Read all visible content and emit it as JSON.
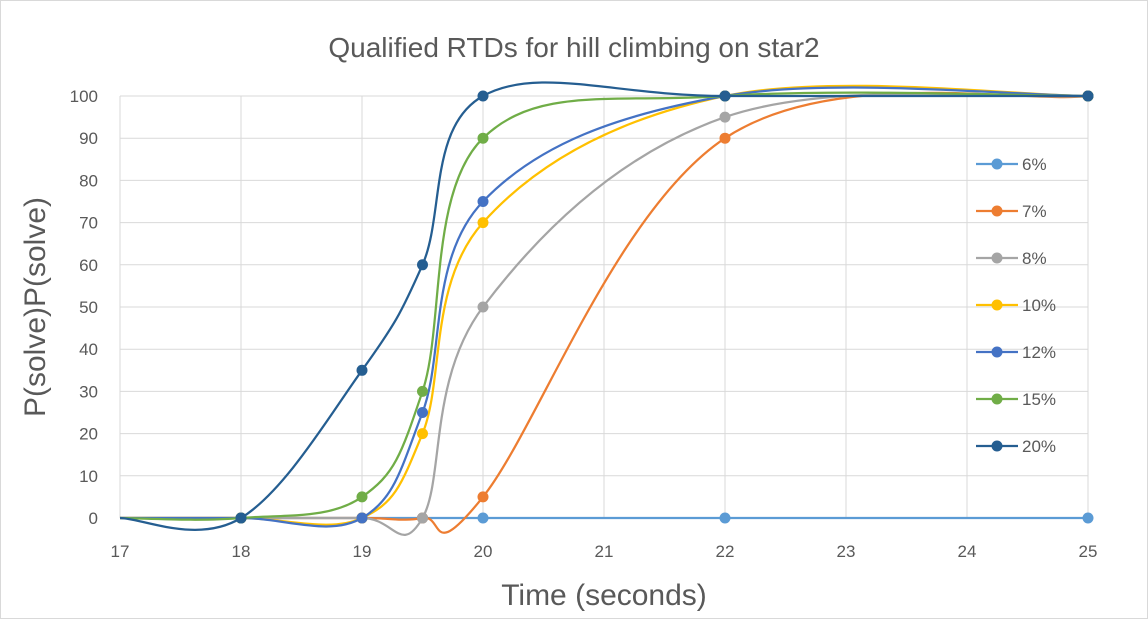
{
  "chart_data": {
    "type": "line",
    "title": "Qualified RTDs for hill climbing on star2",
    "xlabel": "Time (seconds)",
    "ylabel": "P(solve)P(solve)",
    "xlim": [
      17,
      25
    ],
    "ylim": [
      0,
      100
    ],
    "xticks": [
      17,
      18,
      19,
      20,
      21,
      22,
      23,
      24,
      25
    ],
    "yticks": [
      0,
      10,
      20,
      30,
      40,
      50,
      60,
      70,
      80,
      90,
      100
    ],
    "grid": true,
    "smooth": true,
    "legend_position": "right",
    "series": [
      {
        "name": "6%",
        "color": "#5B9BD5",
        "points": [
          [
            17,
            0
          ],
          [
            18,
            0
          ],
          [
            19,
            0
          ],
          [
            19.5,
            0
          ],
          [
            20,
            0
          ],
          [
            22,
            0
          ],
          [
            25,
            0
          ]
        ]
      },
      {
        "name": "7%",
        "color": "#ED7D31",
        "points": [
          [
            17,
            0
          ],
          [
            18,
            0
          ],
          [
            19,
            0
          ],
          [
            19.5,
            0
          ],
          [
            20,
            5
          ],
          [
            22,
            90
          ],
          [
            25,
            100
          ]
        ]
      },
      {
        "name": "8%",
        "color": "#A5A5A5",
        "points": [
          [
            17,
            0
          ],
          [
            18,
            0
          ],
          [
            19,
            0
          ],
          [
            19.5,
            0
          ],
          [
            20,
            50
          ],
          [
            22,
            95
          ],
          [
            25,
            100
          ]
        ]
      },
      {
        "name": "10%",
        "color": "#FFC000",
        "points": [
          [
            17,
            0
          ],
          [
            18,
            0
          ],
          [
            19,
            0
          ],
          [
            19.5,
            20
          ],
          [
            20,
            70
          ],
          [
            22,
            100
          ],
          [
            25,
            100
          ]
        ]
      },
      {
        "name": "12%",
        "color": "#4472C4",
        "points": [
          [
            17,
            0
          ],
          [
            18,
            0
          ],
          [
            19,
            0
          ],
          [
            19.5,
            25
          ],
          [
            20,
            75
          ],
          [
            22,
            100
          ],
          [
            25,
            100
          ]
        ]
      },
      {
        "name": "15%",
        "color": "#70AD47",
        "points": [
          [
            17,
            0
          ],
          [
            18,
            0
          ],
          [
            19,
            5
          ],
          [
            19.5,
            30
          ],
          [
            20,
            90
          ],
          [
            22,
            100
          ],
          [
            25,
            100
          ]
        ]
      },
      {
        "name": "20%",
        "color": "#255E91",
        "points": [
          [
            17,
            0
          ],
          [
            18,
            0
          ],
          [
            19,
            35
          ],
          [
            19.5,
            60
          ],
          [
            20,
            100
          ],
          [
            22,
            100
          ],
          [
            25,
            100
          ]
        ]
      }
    ],
    "markers_shown_from_x": 18
  }
}
